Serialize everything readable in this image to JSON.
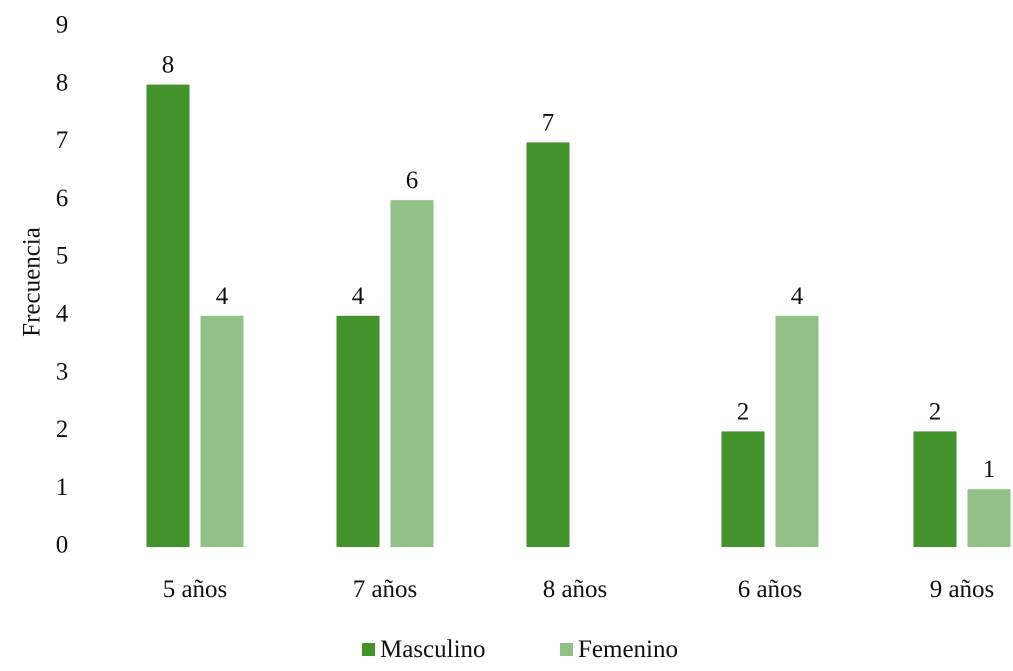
{
  "chart_data": {
    "type": "bar",
    "title": "",
    "xlabel": "",
    "ylabel": "Frecuencia",
    "ylim": [
      0,
      9
    ],
    "yticks": [
      0,
      1,
      2,
      3,
      4,
      5,
      6,
      7,
      8,
      9
    ],
    "grid": false,
    "legend_position": "bottom",
    "categories": [
      "5 años",
      "7 años",
      "8 años",
      "6 años",
      "9 años"
    ],
    "series": [
      {
        "name": "Masculino",
        "color": "#43922a",
        "values": [
          8,
          4,
          7,
          2,
          2
        ],
        "labels": [
          "8",
          "4",
          "7",
          "2",
          "2"
        ]
      },
      {
        "name": "Femenino",
        "color": "#92c188",
        "values": [
          4,
          6,
          null,
          4,
          1
        ],
        "labels": [
          "4",
          "6",
          "",
          "4",
          "1"
        ]
      }
    ]
  }
}
